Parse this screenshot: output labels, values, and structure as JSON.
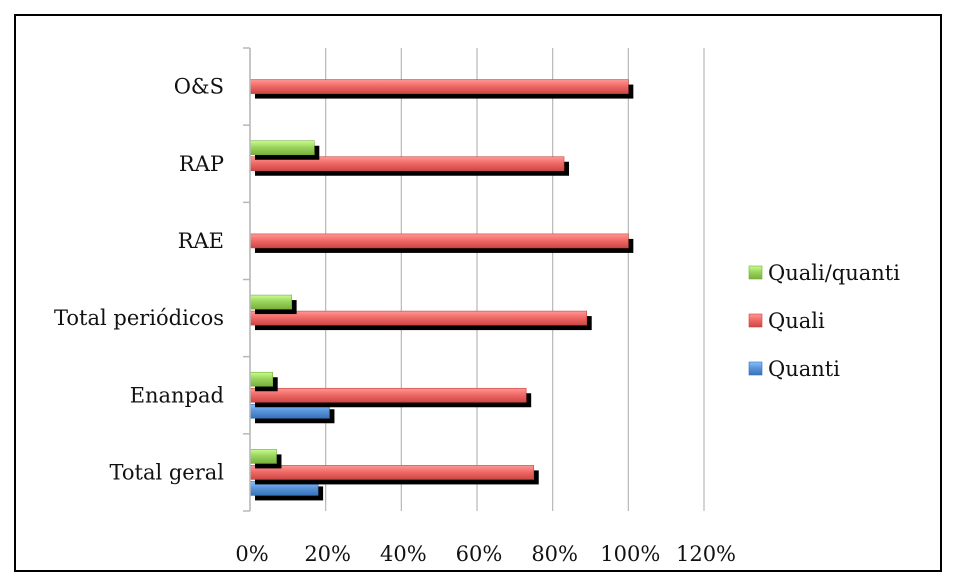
{
  "chart_data": {
    "type": "bar",
    "orientation": "horizontal",
    "categories": [
      "Total geral",
      "Enanpad",
      "Total periódicos",
      "RAE",
      "RAP",
      "O&S"
    ],
    "series": [
      {
        "name": "Quanti",
        "color": "#5b95dc",
        "values": [
          18,
          21,
          0,
          0,
          0,
          0
        ]
      },
      {
        "name": "Quali",
        "color": "#f06b68",
        "values": [
          75,
          73,
          89,
          100,
          83,
          100
        ]
      },
      {
        "name": "Quali/quanti",
        "color": "#9bd45f",
        "values": [
          7,
          6,
          11,
          0,
          17,
          0
        ]
      }
    ],
    "xlim": [
      0,
      120
    ],
    "xticks": [
      "0%",
      "20%",
      "40%",
      "60%",
      "80%",
      "100%",
      "120%"
    ],
    "xtick_values": [
      0,
      20,
      40,
      60,
      80,
      100,
      120
    ],
    "grid": true,
    "legend_position": "right",
    "legend_order": [
      "Quali/quanti",
      "Quali",
      "Quanti"
    ]
  }
}
